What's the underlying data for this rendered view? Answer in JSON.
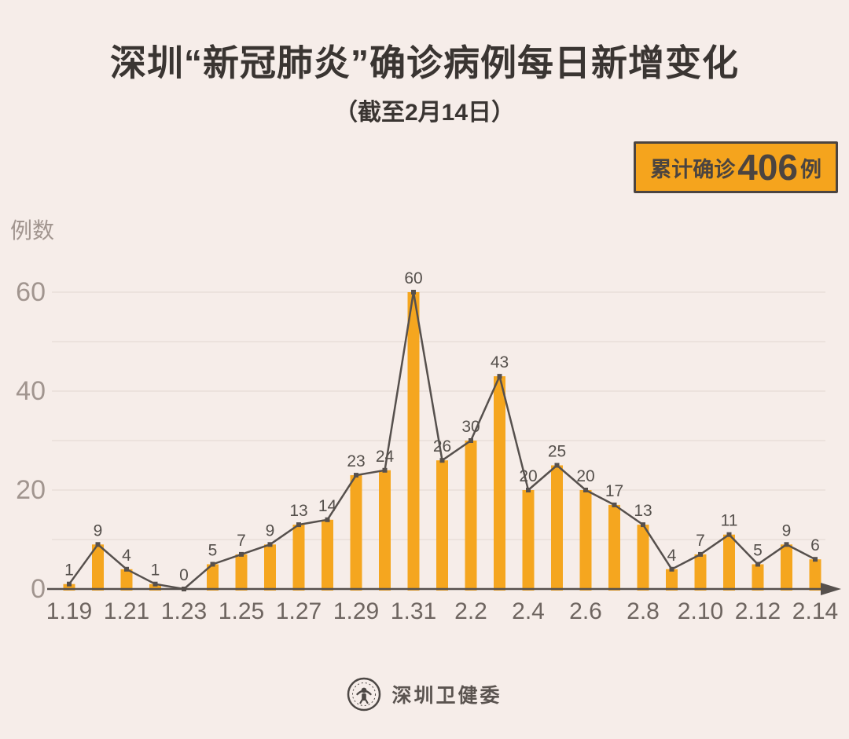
{
  "header": {
    "title": "深圳“新冠肺炎”确诊病例每日新增变化",
    "subtitle": "（截至2月14日）"
  },
  "badge": {
    "prefix": "累计确诊",
    "number": "406",
    "suffix": "例",
    "bg_color": "#f5a41d",
    "border_color": "#4b4440"
  },
  "chart_data": {
    "type": "bar",
    "note": "combo bar + line with point markers and value labels",
    "title": "深圳“新冠肺炎”确诊病例每日新增变化",
    "xlabel": "",
    "ylabel": "例数",
    "categories": [
      "1.19",
      "1.20",
      "1.21",
      "1.22",
      "1.23",
      "1.24",
      "1.25",
      "1.26",
      "1.27",
      "1.28",
      "1.29",
      "1.30",
      "1.31",
      "2.1",
      "2.2",
      "2.3",
      "2.4",
      "2.5",
      "2.6",
      "2.7",
      "2.8",
      "2.9",
      "2.10",
      "2.11",
      "2.12",
      "2.13",
      "2.14"
    ],
    "values": [
      1,
      9,
      4,
      1,
      0,
      5,
      7,
      9,
      13,
      14,
      23,
      24,
      60,
      26,
      30,
      43,
      20,
      25,
      20,
      17,
      13,
      4,
      7,
      11,
      5,
      9,
      6
    ],
    "x_tick_labels": [
      "1.19",
      "1.21",
      "1.23",
      "1.25",
      "1.27",
      "1.29",
      "1.31",
      "2.2",
      "2.4",
      "2.6",
      "2.8",
      "2.10",
      "2.12",
      "2.14"
    ],
    "x_tick_interval": 2,
    "y_ticks": [
      0,
      20,
      40,
      60
    ],
    "ylim": [
      0,
      60
    ],
    "grid_interval": 10,
    "grid_on": true,
    "legend": "none",
    "bar_color": "#f5a61f",
    "line_color": "#56504d",
    "axis_color": "#56504d",
    "grid_color": "#e5dbd6",
    "value_label_color": "#55504c",
    "x_tick_color": "#6e6560",
    "y_tick_color": "#a1958f"
  },
  "footer": {
    "brand": "深圳卫健委"
  }
}
